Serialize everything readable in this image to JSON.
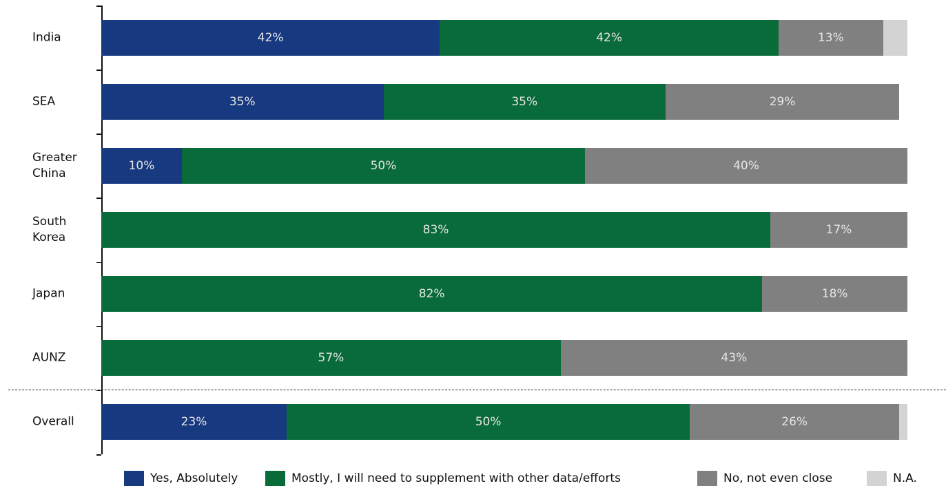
{
  "chart_data": {
    "type": "stacked-bar-horizontal",
    "categories": [
      "India",
      "SEA",
      "Greater China",
      "South Korea",
      "Japan",
      "AUNZ",
      "Overall"
    ],
    "xlim": [
      0,
      100
    ],
    "legend": "bottom",
    "series": [
      {
        "name": "Yes, Absolutely",
        "color": "#17397f",
        "values": [
          42,
          35,
          10,
          null,
          null,
          null,
          23
        ],
        "value_labels": [
          "42%",
          "35%",
          "10%",
          null,
          null,
          null,
          "23%"
        ]
      },
      {
        "name": "Mostly, I will need to supplement with other data/efforts",
        "color": "#096b3a",
        "values": [
          42,
          35,
          50,
          83,
          82,
          57,
          50
        ],
        "value_labels": [
          "42%",
          "35%",
          "50%",
          "83%",
          "82%",
          "57%",
          "50%"
        ]
      },
      {
        "name": "No, not even close",
        "color": "#808080",
        "values": [
          13,
          29,
          40,
          17,
          18,
          43,
          26
        ],
        "value_labels": [
          "13%",
          "29%",
          "40%",
          "17%",
          "18%",
          "43%",
          "26%"
        ]
      },
      {
        "name": "N.A.",
        "color": "#d3d3d3",
        "values": [
          3,
          null,
          null,
          null,
          null,
          null,
          1
        ]
      }
    ]
  }
}
